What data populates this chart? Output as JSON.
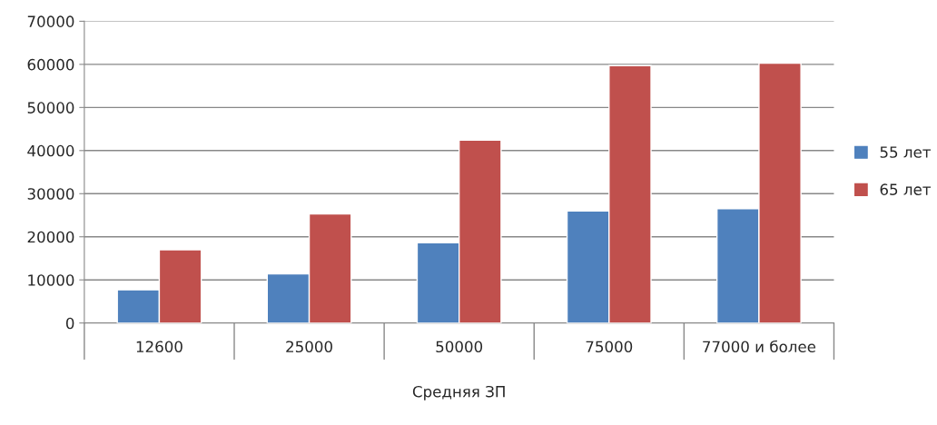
{
  "chart_data": {
    "type": "bar",
    "xlabel": "Средняя ЗП",
    "categories": [
      "12600",
      "25000",
      "50000",
      "75000",
      "77000 и более"
    ],
    "series": [
      {
        "name": "55 лет",
        "color": "#4f81bd",
        "values": [
          7700,
          11400,
          18600,
          26000,
          26500
        ]
      },
      {
        "name": "65 лет",
        "color": "#c0504d",
        "values": [
          17000,
          25300,
          42400,
          59700,
          60300
        ]
      }
    ],
    "ylim": [
      0,
      70000
    ],
    "yticks": [
      0,
      10000,
      20000,
      30000,
      40000,
      50000,
      60000,
      70000
    ],
    "grid": "y",
    "legend": "right"
  }
}
